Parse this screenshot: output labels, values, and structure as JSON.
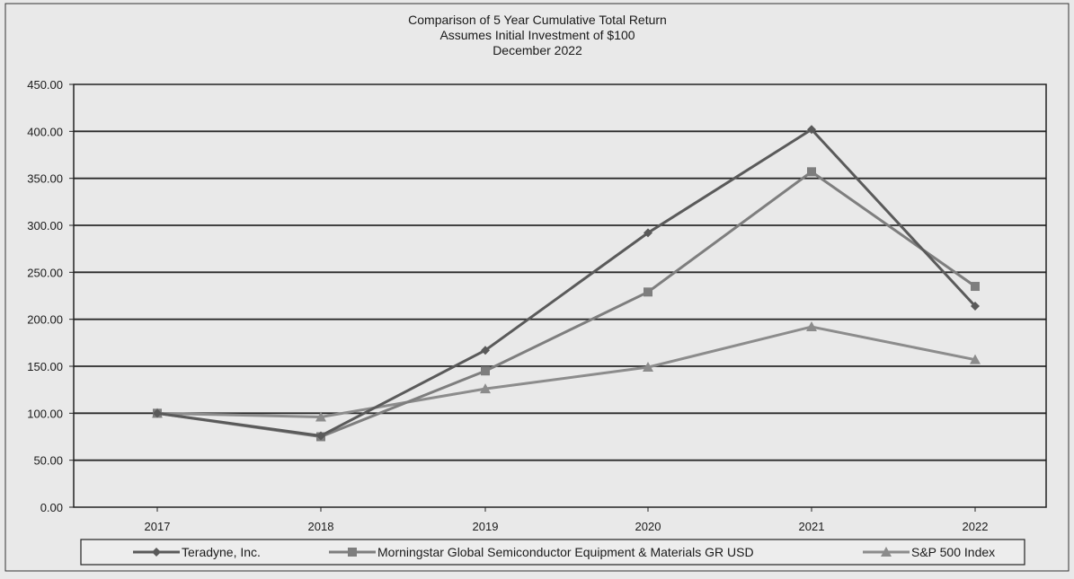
{
  "chart_data": {
    "type": "line",
    "title_lines": [
      "Comparison of 5 Year Cumulative Total Return",
      "Assumes Initial Investment of $100",
      "December 2022"
    ],
    "categories": [
      "2017",
      "2018",
      "2019",
      "2020",
      "2021",
      "2022"
    ],
    "ylim": [
      0,
      450
    ],
    "y_ticks": [
      "0.00",
      "50.00",
      "100.00",
      "150.00",
      "200.00",
      "250.00",
      "300.00",
      "350.00",
      "400.00",
      "450.00"
    ],
    "grid": true,
    "legend_position": "bottom",
    "series": [
      {
        "name": "Teradyne, Inc.",
        "marker": "diamond",
        "color": "#5a5a5a",
        "values": [
          100,
          76,
          167,
          292,
          402,
          214
        ]
      },
      {
        "name": "Morningstar Global Semiconductor Equipment & Materials GR USD",
        "marker": "square",
        "color": "#7e7e7e",
        "values": [
          100,
          75,
          145,
          229,
          357,
          235
        ]
      },
      {
        "name": "S&P 500 Index",
        "marker": "triangle",
        "color": "#8c8c8c",
        "values": [
          100,
          96,
          126,
          149,
          192,
          157
        ]
      }
    ]
  }
}
